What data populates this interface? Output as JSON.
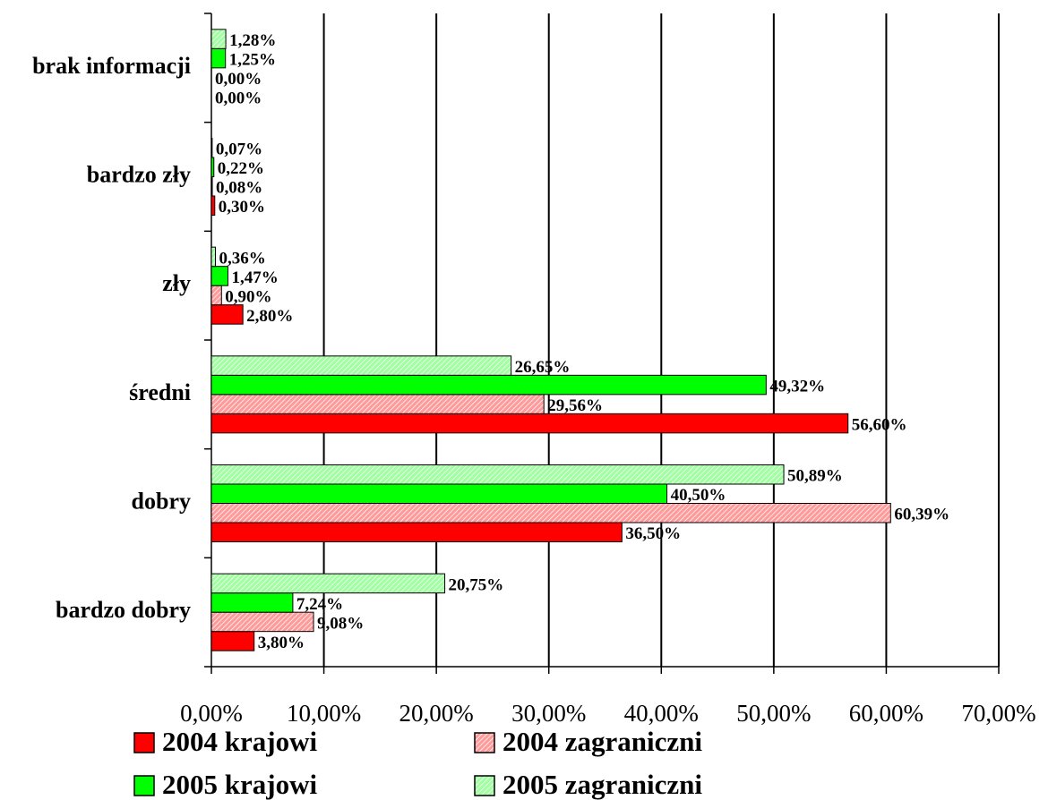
{
  "chart_data": {
    "type": "barh",
    "categories": [
      "brak informacji",
      "bardzo zły",
      "zły",
      "średni",
      "dobry",
      "bardzo dobry"
    ],
    "series": [
      {
        "name": "2004 krajowi",
        "color": "#ff0000",
        "values": [
          0.0,
          0.3,
          2.8,
          56.6,
          36.5,
          3.8
        ],
        "value_labels": [
          "0,00%",
          "0,30%",
          "2,80%",
          "56,60%",
          "36,50%",
          "3,80%"
        ]
      },
      {
        "name": "2004 zagraniczni",
        "color": "#ff9a9a",
        "pattern": "hatch",
        "values": [
          0.0,
          0.08,
          0.9,
          29.56,
          60.39,
          9.08
        ],
        "value_labels": [
          "0,00%",
          "0,08%",
          "0,90%",
          "29,56%",
          "60,39%",
          "9,08%"
        ]
      },
      {
        "name": "2005 krajowi",
        "color": "#00ff00",
        "values": [
          1.25,
          0.22,
          1.47,
          49.32,
          40.5,
          7.24
        ],
        "value_labels": [
          "1,25%",
          "0,22%",
          "1,47%",
          "49,32%",
          "40,50%",
          "7,24%"
        ]
      },
      {
        "name": "2005 zagraniczni",
        "color": "#a0ffa0",
        "pattern": "hatch",
        "values": [
          1.28,
          0.07,
          0.36,
          26.65,
          50.89,
          20.75
        ],
        "value_labels": [
          "1,28%",
          "0,07%",
          "0,36%",
          "26,65%",
          "50,89%",
          "20,75%"
        ]
      }
    ],
    "xlim": [
      0,
      70
    ],
    "xticks": [
      {
        "value": 0,
        "label": "0,00%"
      },
      {
        "value": 10,
        "label": "10,00%"
      },
      {
        "value": 20,
        "label": "20,00%"
      },
      {
        "value": 30,
        "label": "30,00%"
      },
      {
        "value": 40,
        "label": "40,00%"
      },
      {
        "value": 50,
        "label": "50,00%"
      },
      {
        "value": 60,
        "label": "60,00%"
      },
      {
        "value": 70,
        "label": "70,00%"
      }
    ],
    "grid": true,
    "legend": "bottom"
  }
}
